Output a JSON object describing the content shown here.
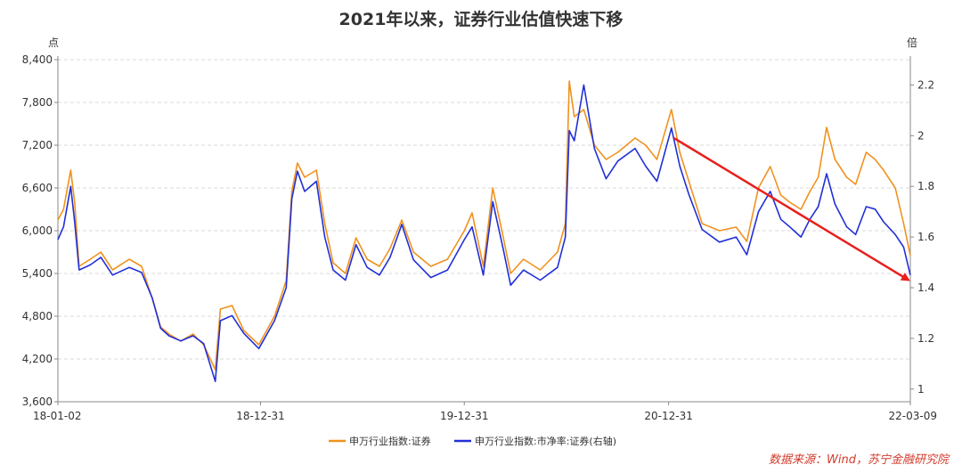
{
  "chart_data": {
    "type": "line",
    "title": "2021年以来，证券行业估值快速下移",
    "y_left_unit": "点",
    "y_right_unit": "倍",
    "x_ticks": [
      "18-01-02",
      "18-12-31",
      "19-12-31",
      "20-12-31",
      "22-03-09"
    ],
    "y_left_ticks": [
      "3,600",
      "4,200",
      "4,800",
      "5,400",
      "6,000",
      "6,600",
      "7,200",
      "7,800",
      "8,400"
    ],
    "y_right_ticks": [
      "1",
      "1.2",
      "1.4",
      "1.6",
      "1.8",
      "2",
      "2.2"
    ],
    "y_left_range": [
      3600,
      8400
    ],
    "y_right_range": [
      0.95,
      2.3
    ],
    "grid": true,
    "legend_position": "bottom",
    "series": [
      {
        "name": "申万行业指数:证券",
        "axis": "left",
        "color": "#f0921e",
        "points": [
          [
            "2018-01-02",
            6150
          ],
          [
            "2018-01-12",
            6300
          ],
          [
            "2018-01-25",
            6850
          ],
          [
            "2018-02-01",
            6400
          ],
          [
            "2018-02-09",
            5500
          ],
          [
            "2018-03-01",
            5600
          ],
          [
            "2018-03-20",
            5700
          ],
          [
            "2018-04-10",
            5450
          ],
          [
            "2018-05-10",
            5600
          ],
          [
            "2018-06-01",
            5500
          ],
          [
            "2018-06-20",
            5050
          ],
          [
            "2018-07-05",
            4650
          ],
          [
            "2018-07-20",
            4550
          ],
          [
            "2018-08-10",
            4450
          ],
          [
            "2018-09-01",
            4550
          ],
          [
            "2018-09-20",
            4400
          ],
          [
            "2018-10-11",
            4050
          ],
          [
            "2018-10-20",
            4900
          ],
          [
            "2018-11-10",
            4950
          ],
          [
            "2018-12-01",
            4600
          ],
          [
            "2018-12-28",
            4400
          ],
          [
            "2019-01-25",
            4800
          ],
          [
            "2019-02-15",
            5300
          ],
          [
            "2019-02-25",
            6550
          ],
          [
            "2019-03-07",
            6950
          ],
          [
            "2019-03-20",
            6750
          ],
          [
            "2019-04-10",
            6850
          ],
          [
            "2019-04-25",
            6100
          ],
          [
            "2019-05-10",
            5550
          ],
          [
            "2019-06-01",
            5400
          ],
          [
            "2019-06-20",
            5900
          ],
          [
            "2019-07-10",
            5600
          ],
          [
            "2019-08-01",
            5500
          ],
          [
            "2019-08-20",
            5750
          ],
          [
            "2019-09-10",
            6150
          ],
          [
            "2019-10-01",
            5700
          ],
          [
            "2019-11-01",
            5500
          ],
          [
            "2019-12-01",
            5600
          ],
          [
            "2019-12-31",
            6000
          ],
          [
            "2020-01-14",
            6250
          ],
          [
            "2020-02-03",
            5500
          ],
          [
            "2020-02-20",
            6600
          ],
          [
            "2020-03-10",
            5900
          ],
          [
            "2020-03-23",
            5400
          ],
          [
            "2020-04-15",
            5600
          ],
          [
            "2020-05-15",
            5450
          ],
          [
            "2020-06-15",
            5700
          ],
          [
            "2020-06-29",
            6100
          ],
          [
            "2020-07-06",
            8100
          ],
          [
            "2020-07-15",
            7600
          ],
          [
            "2020-08-01",
            7700
          ],
          [
            "2020-08-20",
            7200
          ],
          [
            "2020-09-10",
            7000
          ],
          [
            "2020-10-01",
            7100
          ],
          [
            "2020-11-01",
            7300
          ],
          [
            "2020-11-20",
            7200
          ],
          [
            "2020-12-10",
            7000
          ],
          [
            "2021-01-05",
            7700
          ],
          [
            "2021-01-20",
            7100
          ],
          [
            "2021-02-05",
            6700
          ],
          [
            "2021-03-01",
            6100
          ],
          [
            "2021-04-01",
            6000
          ],
          [
            "2021-05-01",
            6050
          ],
          [
            "2021-05-20",
            5850
          ],
          [
            "2021-06-10",
            6600
          ],
          [
            "2021-07-01",
            6900
          ],
          [
            "2021-07-20",
            6500
          ],
          [
            "2021-08-05",
            6400
          ],
          [
            "2021-08-25",
            6300
          ],
          [
            "2021-09-10",
            6550
          ],
          [
            "2021-09-25",
            6750
          ],
          [
            "2021-10-10",
            7450
          ],
          [
            "2021-10-25",
            7000
          ],
          [
            "2021-11-15",
            6750
          ],
          [
            "2021-12-01",
            6650
          ],
          [
            "2021-12-20",
            7100
          ],
          [
            "2022-01-05",
            7000
          ],
          [
            "2022-01-20",
            6850
          ],
          [
            "2022-02-10",
            6600
          ],
          [
            "2022-02-25",
            6100
          ],
          [
            "2022-03-09",
            5650
          ]
        ]
      },
      {
        "name": "申万行业指数:市净率:证券(右轴)",
        "axis": "right",
        "color": "#2130d6",
        "points": [
          [
            "2018-01-02",
            1.59
          ],
          [
            "2018-01-12",
            1.64
          ],
          [
            "2018-01-25",
            1.8
          ],
          [
            "2018-02-01",
            1.66
          ],
          [
            "2018-02-09",
            1.47
          ],
          [
            "2018-03-01",
            1.49
          ],
          [
            "2018-03-20",
            1.52
          ],
          [
            "2018-04-10",
            1.45
          ],
          [
            "2018-05-10",
            1.48
          ],
          [
            "2018-06-01",
            1.46
          ],
          [
            "2018-06-20",
            1.36
          ],
          [
            "2018-07-05",
            1.24
          ],
          [
            "2018-07-20",
            1.21
          ],
          [
            "2018-08-10",
            1.19
          ],
          [
            "2018-09-01",
            1.21
          ],
          [
            "2018-09-20",
            1.18
          ],
          [
            "2018-10-11",
            1.03
          ],
          [
            "2018-10-20",
            1.27
          ],
          [
            "2018-11-10",
            1.29
          ],
          [
            "2018-12-01",
            1.22
          ],
          [
            "2018-12-28",
            1.16
          ],
          [
            "2019-01-25",
            1.27
          ],
          [
            "2019-02-15",
            1.4
          ],
          [
            "2019-02-25",
            1.75
          ],
          [
            "2019-03-07",
            1.86
          ],
          [
            "2019-03-20",
            1.78
          ],
          [
            "2019-04-10",
            1.82
          ],
          [
            "2019-04-25",
            1.6
          ],
          [
            "2019-05-10",
            1.47
          ],
          [
            "2019-06-01",
            1.43
          ],
          [
            "2019-06-20",
            1.57
          ],
          [
            "2019-07-10",
            1.48
          ],
          [
            "2019-08-01",
            1.45
          ],
          [
            "2019-08-20",
            1.52
          ],
          [
            "2019-09-10",
            1.65
          ],
          [
            "2019-10-01",
            1.51
          ],
          [
            "2019-11-01",
            1.44
          ],
          [
            "2019-12-01",
            1.47
          ],
          [
            "2019-12-31",
            1.59
          ],
          [
            "2020-01-14",
            1.64
          ],
          [
            "2020-02-03",
            1.45
          ],
          [
            "2020-02-20",
            1.74
          ],
          [
            "2020-03-10",
            1.55
          ],
          [
            "2020-03-23",
            1.41
          ],
          [
            "2020-04-15",
            1.47
          ],
          [
            "2020-05-15",
            1.43
          ],
          [
            "2020-06-15",
            1.48
          ],
          [
            "2020-06-29",
            1.6
          ],
          [
            "2020-07-06",
            2.02
          ],
          [
            "2020-07-15",
            1.98
          ],
          [
            "2020-08-01",
            2.2
          ],
          [
            "2020-08-20",
            1.95
          ],
          [
            "2020-09-10",
            1.83
          ],
          [
            "2020-10-01",
            1.9
          ],
          [
            "2020-11-01",
            1.95
          ],
          [
            "2020-11-20",
            1.88
          ],
          [
            "2020-12-10",
            1.82
          ],
          [
            "2021-01-05",
            2.03
          ],
          [
            "2021-01-20",
            1.88
          ],
          [
            "2021-02-05",
            1.77
          ],
          [
            "2021-03-01",
            1.63
          ],
          [
            "2021-04-01",
            1.58
          ],
          [
            "2021-05-01",
            1.6
          ],
          [
            "2021-05-20",
            1.53
          ],
          [
            "2021-06-10",
            1.7
          ],
          [
            "2021-07-01",
            1.78
          ],
          [
            "2021-07-20",
            1.67
          ],
          [
            "2021-08-05",
            1.64
          ],
          [
            "2021-08-25",
            1.6
          ],
          [
            "2021-09-10",
            1.67
          ],
          [
            "2021-09-25",
            1.72
          ],
          [
            "2021-10-10",
            1.85
          ],
          [
            "2021-10-25",
            1.73
          ],
          [
            "2021-11-15",
            1.64
          ],
          [
            "2021-12-01",
            1.61
          ],
          [
            "2021-12-20",
            1.72
          ],
          [
            "2022-01-05",
            1.71
          ],
          [
            "2022-01-20",
            1.66
          ],
          [
            "2022-02-10",
            1.61
          ],
          [
            "2022-02-25",
            1.56
          ],
          [
            "2022-03-09",
            1.45
          ]
        ]
      }
    ],
    "annotation": {
      "type": "arrow",
      "color": "#e8201c",
      "from": [
        "2021-01-10",
        1.99
      ],
      "to": [
        "2022-03-06",
        1.43
      ],
      "axis": "right"
    },
    "source": "数据来源：Wind，苏宁金融研究院"
  }
}
